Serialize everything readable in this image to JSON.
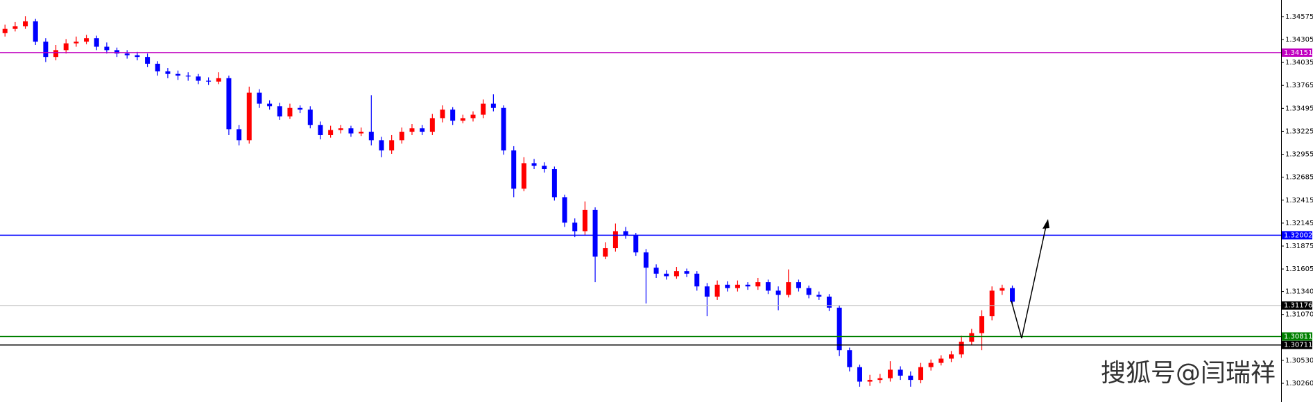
{
  "chart_data": {
    "type": "candlestick",
    "open": [
      1.3438,
      1.3443,
      1.3446,
      1.3452,
      1.3428,
      1.341,
      1.3418,
      1.3426,
      1.3428,
      1.3432,
      1.3422,
      1.3418,
      1.3414,
      1.3412,
      1.341,
      1.3402,
      1.3393,
      1.339,
      1.3388,
      1.3387,
      1.3382,
      1.3381,
      1.3385,
      1.3325,
      1.3312,
      1.3368,
      1.3355,
      1.3352,
      1.334,
      1.335,
      1.3348,
      1.333,
      1.3318,
      1.3324,
      1.3326,
      1.332,
      1.3322,
      1.3312,
      1.33,
      1.3312,
      1.3322,
      1.3326,
      1.3322,
      1.3338,
      1.3348,
      1.3335,
      1.3338,
      1.3342,
      1.3355,
      1.335,
      1.33,
      1.3255,
      1.3285,
      1.3282,
      1.3278,
      1.3245,
      1.3215,
      1.3205,
      1.323,
      1.3175,
      1.3185,
      1.3205,
      1.32,
      1.318,
      1.3162,
      1.3155,
      1.3152,
      1.3158,
      1.3155,
      1.314,
      1.3128,
      1.3142,
      1.3138,
      1.3142,
      1.314,
      1.3145,
      1.3135,
      1.313,
      1.3145,
      1.3138,
      1.313,
      1.3128,
      1.3115,
      1.3065,
      1.3045,
      1.3028,
      1.303,
      1.3032,
      1.3042,
      1.3035,
      1.303,
      1.3045,
      1.305,
      1.3055,
      1.306,
      1.3075,
      1.3085,
      1.3105,
      1.3135,
      1.3138
    ],
    "high": [
      1.3448,
      1.3451,
      1.3458,
      1.3455,
      1.3432,
      1.3424,
      1.3431,
      1.3434,
      1.3436,
      1.3435,
      1.3427,
      1.3421,
      1.3418,
      1.3416,
      1.3414,
      1.3405,
      1.3397,
      1.3394,
      1.3392,
      1.339,
      1.3386,
      1.3392,
      1.3388,
      1.333,
      1.3375,
      1.3372,
      1.3359,
      1.3356,
      1.3355,
      1.3353,
      1.3352,
      1.3334,
      1.3329,
      1.333,
      1.3329,
      1.3327,
      1.3365,
      1.3316,
      1.3318,
      1.3327,
      1.3331,
      1.333,
      1.3343,
      1.3353,
      1.3351,
      1.3342,
      1.3346,
      1.336,
      1.3366,
      1.3353,
      1.3305,
      1.3292,
      1.329,
      1.3286,
      1.3281,
      1.3248,
      1.322,
      1.324,
      1.3233,
      1.3192,
      1.3214,
      1.321,
      1.3203,
      1.3184,
      1.3166,
      1.3159,
      1.3163,
      1.3161,
      1.3158,
      1.3144,
      1.3147,
      1.3146,
      1.3147,
      1.3145,
      1.315,
      1.3148,
      1.314,
      1.316,
      1.3148,
      1.3141,
      1.3134,
      1.3131,
      1.3118,
      1.3068,
      1.3048,
      1.3036,
      1.3037,
      1.3052,
      1.3046,
      1.304,
      1.305,
      1.3054,
      1.3059,
      1.3064,
      1.3082,
      1.309,
      1.3112,
      1.314,
      1.3142,
      1.3141
    ],
    "low": [
      1.3434,
      1.344,
      1.3443,
      1.3424,
      1.3404,
      1.3406,
      1.3414,
      1.3422,
      1.3425,
      1.3418,
      1.3414,
      1.341,
      1.3408,
      1.3406,
      1.3398,
      1.3388,
      1.3385,
      1.3383,
      1.3382,
      1.3378,
      1.3377,
      1.3378,
      1.3318,
      1.3306,
      1.3308,
      1.335,
      1.3348,
      1.3336,
      1.3337,
      1.3344,
      1.3326,
      1.3313,
      1.3315,
      1.332,
      1.3316,
      1.3317,
      1.3306,
      1.3292,
      1.3296,
      1.3308,
      1.3318,
      1.3318,
      1.3318,
      1.3333,
      1.333,
      1.3332,
      1.3334,
      1.3338,
      1.3346,
      1.3295,
      1.3245,
      1.3252,
      1.3278,
      1.3274,
      1.3241,
      1.321,
      1.3198,
      1.32,
      1.3145,
      1.3172,
      1.3181,
      1.3196,
      1.3176,
      1.312,
      1.315,
      1.3148,
      1.3149,
      1.3151,
      1.3135,
      1.3105,
      1.3124,
      1.3134,
      1.3134,
      1.3136,
      1.3136,
      1.3131,
      1.3112,
      1.3127,
      1.3134,
      1.3126,
      1.3124,
      1.3111,
      1.3058,
      1.304,
      1.3022,
      1.3023,
      1.3026,
      1.3028,
      1.303,
      1.3022,
      1.3026,
      1.3041,
      1.3047,
      1.3051,
      1.3056,
      1.3071,
      1.3065,
      1.31,
      1.313,
      1.3118
    ],
    "close": [
      1.3443,
      1.3446,
      1.3452,
      1.3428,
      1.341,
      1.3418,
      1.3426,
      1.3428,
      1.3432,
      1.3422,
      1.3418,
      1.3414,
      1.3412,
      1.341,
      1.3402,
      1.3393,
      1.339,
      1.3388,
      1.3387,
      1.3382,
      1.3381,
      1.3385,
      1.3325,
      1.3312,
      1.3368,
      1.3355,
      1.3352,
      1.334,
      1.335,
      1.3348,
      1.333,
      1.3318,
      1.3324,
      1.3326,
      1.332,
      1.3322,
      1.3312,
      1.33,
      1.3312,
      1.3322,
      1.3326,
      1.3322,
      1.3338,
      1.3348,
      1.3335,
      1.3338,
      1.3342,
      1.3355,
      1.335,
      1.33,
      1.3255,
      1.3285,
      1.3282,
      1.3278,
      1.3245,
      1.3215,
      1.3205,
      1.323,
      1.3175,
      1.3185,
      1.3205,
      1.32,
      1.318,
      1.3162,
      1.3155,
      1.3152,
      1.3158,
      1.3155,
      1.314,
      1.3128,
      1.3142,
      1.3138,
      1.3142,
      1.314,
      1.3145,
      1.3135,
      1.313,
      1.3145,
      1.3138,
      1.313,
      1.3128,
      1.3115,
      1.3065,
      1.3045,
      1.3028,
      1.303,
      1.3032,
      1.3042,
      1.3035,
      1.303,
      1.3045,
      1.305,
      1.3055,
      1.306,
      1.3075,
      1.3085,
      1.3105,
      1.3135,
      1.3138,
      1.3122
    ],
    "up_color": "#ff0000",
    "down_color": "#0000ff",
    "ylim": [
      1.3004,
      1.3477
    ],
    "yticks": [
      1.34575,
      1.34305,
      1.34035,
      1.33765,
      1.33495,
      1.33225,
      1.32955,
      1.32685,
      1.32415,
      1.32145,
      1.31875,
      1.31605,
      {
        "value": 1.3134,
        "label": "1.31340"
      },
      {
        "value": 1.3107,
        "label": "1.31070"
      },
      {
        "value": 1.3053,
        "label": "1.30530"
      },
      {
        "value": 1.3026,
        "label": "1.30260"
      }
    ],
    "levels": [
      {
        "value": 1.34151,
        "color": "#c000c0"
      },
      {
        "value": 1.32002,
        "color": "#0000ff"
      },
      {
        "value": 1.31176,
        "color": "#000000"
      },
      {
        "value": 1.30811,
        "color": "#008000"
      },
      {
        "value": 1.30711,
        "color": "#000000"
      }
    ],
    "watermark": "搜狐号@闫瑞祥"
  }
}
